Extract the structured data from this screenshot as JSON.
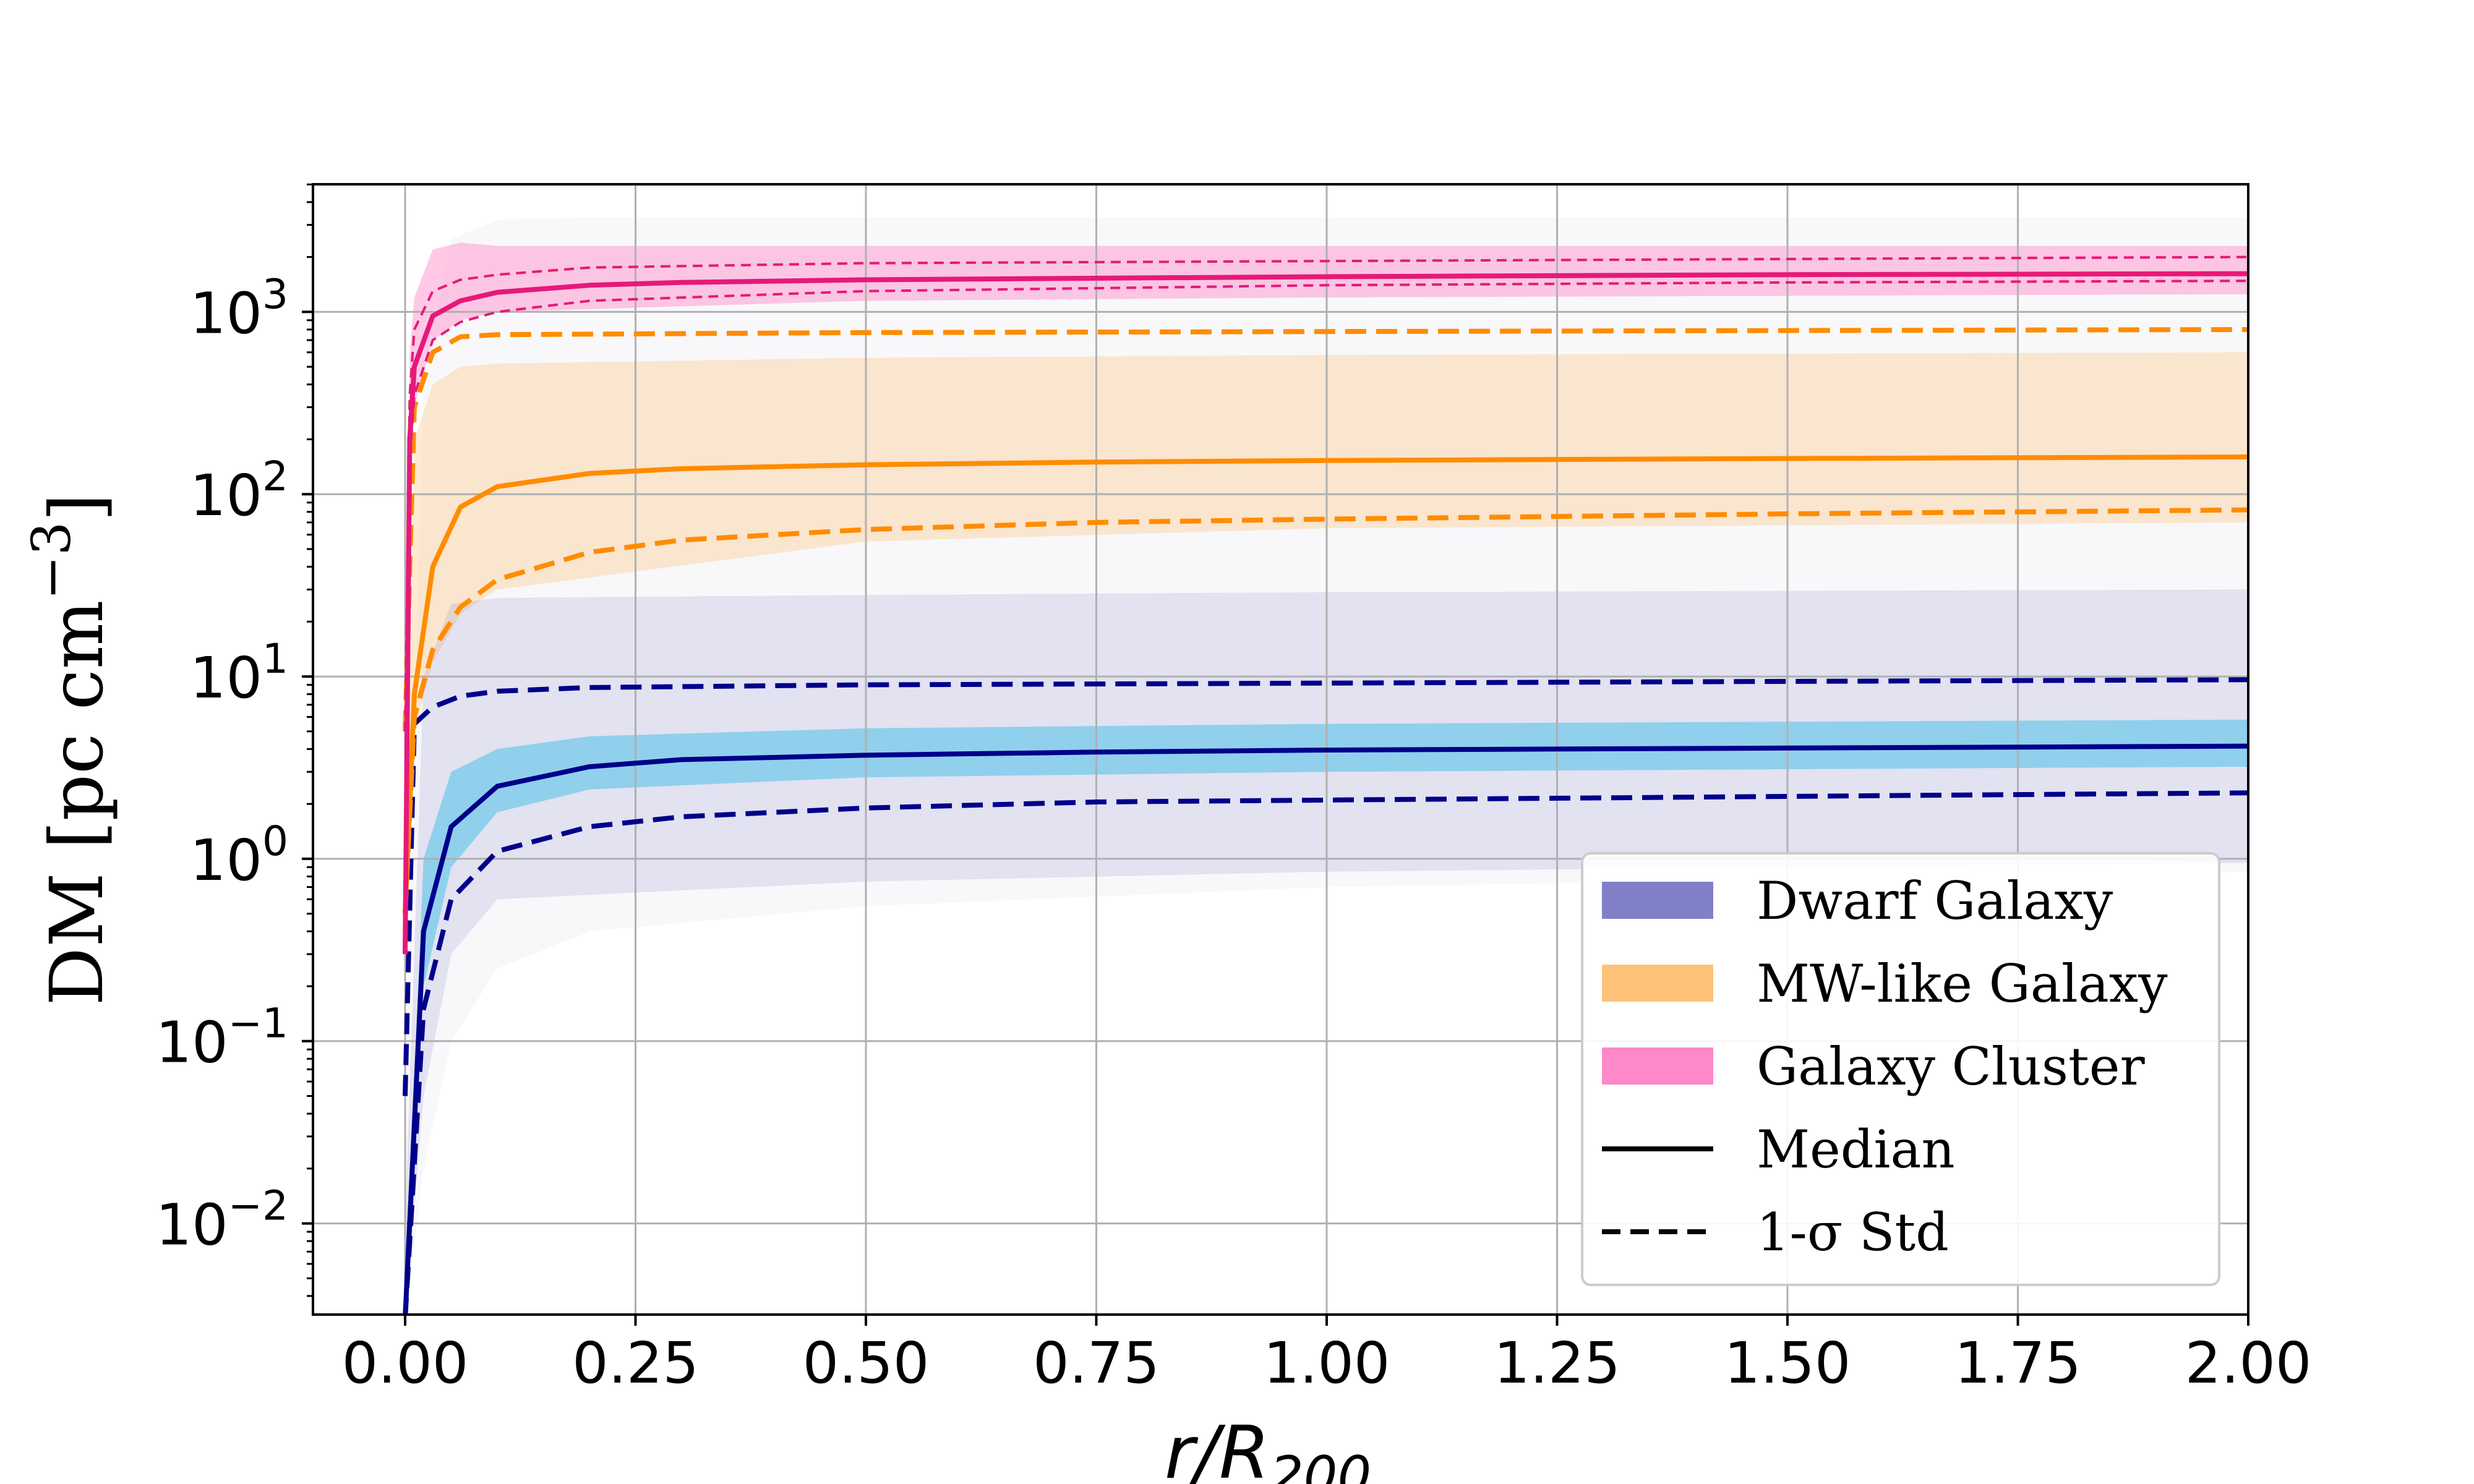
{
  "chart_data": {
    "type": "line",
    "title": "",
    "xlabel": "r/R",
    "xlabel_sub": "200",
    "ylabel": "DM [pc cm",
    "ylabel_sup": "−3",
    "ylabel_close": "]",
    "xlim": [
      -0.1,
      2.0
    ],
    "ylim_log10": [
      -2.5,
      3.7
    ],
    "yscale": "log",
    "grid": true,
    "xticks": [
      0.0,
      0.25,
      0.5,
      0.75,
      1.0,
      1.25,
      1.5,
      1.75,
      2.0
    ],
    "xtick_labels": [
      "0.00",
      "0.25",
      "0.50",
      "0.75",
      "1.00",
      "1.25",
      "1.50",
      "1.75",
      "2.00"
    ],
    "yticks_exp": [
      -2,
      -1,
      0,
      1,
      2,
      3
    ],
    "ytick_base": "10",
    "ytick_exp_labels": [
      "−2",
      "−1",
      "0",
      "1",
      "2",
      "3"
    ],
    "legend_position": "lower-right",
    "legend": [
      {
        "label": "Dwarf Galaxy",
        "kind": "patch",
        "color": "#8080c8"
      },
      {
        "label": "MW-like Galaxy",
        "kind": "patch",
        "color": "#ffc27a"
      },
      {
        "label": "Galaxy Cluster",
        "kind": "patch",
        "color": "#ff88c8"
      },
      {
        "label": "Median",
        "kind": "solid",
        "color": "#000000"
      },
      {
        "label": "1-σ Std",
        "kind": "dashed",
        "color": "#000000"
      }
    ],
    "series": [
      {
        "name": "Dwarf Galaxy median",
        "color": "#00008b",
        "style": "solid",
        "x": [
          0.0,
          0.02,
          0.05,
          0.1,
          0.2,
          0.3,
          0.5,
          0.75,
          1.0,
          1.5,
          2.0
        ],
        "y": [
          0.003,
          0.4,
          1.5,
          2.5,
          3.2,
          3.5,
          3.7,
          3.85,
          3.95,
          4.05,
          4.15
        ]
      },
      {
        "name": "Dwarf Galaxy upper",
        "color": "#00008b",
        "style": "dashed",
        "x": [
          0.0,
          0.01,
          0.03,
          0.06,
          0.1,
          0.2,
          0.5,
          1.0,
          1.5,
          2.0
        ],
        "y": [
          0.05,
          5.5,
          6.8,
          7.8,
          8.3,
          8.7,
          9.0,
          9.2,
          9.4,
          9.6
        ]
      },
      {
        "name": "Dwarf Galaxy lower",
        "color": "#00008b",
        "style": "dashed",
        "x": [
          0.0,
          0.02,
          0.05,
          0.1,
          0.2,
          0.3,
          0.5,
          0.75,
          1.0,
          1.5,
          2.0
        ],
        "y": [
          0.003,
          0.15,
          0.6,
          1.1,
          1.5,
          1.7,
          1.9,
          2.05,
          2.1,
          2.2,
          2.3
        ]
      },
      {
        "name": "MW-like Galaxy median",
        "color": "#ff8c00",
        "style": "solid",
        "x": [
          0.0,
          0.01,
          0.03,
          0.06,
          0.1,
          0.2,
          0.3,
          0.5,
          0.75,
          1.0,
          1.5,
          2.0
        ],
        "y": [
          0.5,
          8,
          40,
          85,
          110,
          130,
          138,
          145,
          150,
          153,
          157,
          160
        ]
      },
      {
        "name": "MW-like Galaxy upper",
        "color": "#ff8c00",
        "style": "dashed",
        "x": [
          0.0,
          0.01,
          0.03,
          0.06,
          0.1,
          0.5,
          1.0,
          1.5,
          2.0
        ],
        "y": [
          5,
          300,
          600,
          730,
          750,
          770,
          780,
          790,
          800
        ]
      },
      {
        "name": "MW-like Galaxy lower",
        "color": "#ff8c00",
        "style": "dashed",
        "x": [
          0.0,
          0.01,
          0.03,
          0.06,
          0.1,
          0.2,
          0.3,
          0.5,
          0.75,
          1.0,
          1.5,
          2.0
        ],
        "y": [
          0.5,
          6,
          14,
          24,
          34,
          48,
          56,
          64,
          70,
          73,
          78,
          82
        ]
      },
      {
        "name": "Galaxy Cluster median",
        "color": "#e6197a",
        "style": "solid",
        "x": [
          0.0,
          0.005,
          0.01,
          0.03,
          0.06,
          0.1,
          0.2,
          0.3,
          0.5,
          1.0,
          1.5,
          2.0
        ],
        "y": [
          0.3,
          200,
          500,
          950,
          1150,
          1280,
          1400,
          1450,
          1500,
          1560,
          1600,
          1620
        ]
      },
      {
        "name": "Galaxy Cluster upper",
        "color": "#e6197a",
        "style": "thin-dashed",
        "x": [
          0.0,
          0.005,
          0.01,
          0.03,
          0.06,
          0.1,
          0.2,
          0.5,
          1.0,
          1.5,
          2.0
        ],
        "y": [
          5,
          350,
          800,
          1300,
          1500,
          1600,
          1750,
          1850,
          1900,
          1950,
          2000
        ]
      },
      {
        "name": "Galaxy Cluster lower",
        "color": "#e6197a",
        "style": "thin-dashed",
        "x": [
          0.0,
          0.005,
          0.01,
          0.03,
          0.06,
          0.1,
          0.2,
          0.5,
          1.0,
          1.5,
          2.0
        ],
        "y": [
          0.3,
          150,
          350,
          700,
          880,
          1000,
          1150,
          1300,
          1400,
          1450,
          1480
        ]
      }
    ],
    "bands": [
      {
        "name": "Dwarf Galaxy core band",
        "color": "#87ceeb",
        "opacity": 0.9,
        "x": [
          0.0,
          0.02,
          0.05,
          0.1,
          0.2,
          0.5,
          1.0,
          2.0
        ],
        "low": [
          0.003,
          0.2,
          0.9,
          1.8,
          2.4,
          2.8,
          3.0,
          3.2
        ],
        "high": [
          0.004,
          1.0,
          3.0,
          4.0,
          4.7,
          5.2,
          5.5,
          5.8
        ]
      },
      {
        "name": "Dwarf Galaxy spread",
        "color": "#8080c8",
        "opacity": 0.18,
        "x": [
          0.0,
          0.02,
          0.05,
          0.1,
          0.5,
          1.0,
          2.0
        ],
        "low": [
          0.003,
          0.05,
          0.3,
          0.6,
          0.75,
          0.85,
          0.95
        ],
        "high": [
          0.01,
          10,
          25,
          27,
          28,
          29,
          30
        ]
      },
      {
        "name": "MW-like Galaxy spread",
        "color": "#ffc27a",
        "opacity": 0.35,
        "x": [
          0.0,
          0.01,
          0.03,
          0.06,
          0.1,
          0.5,
          1.0,
          2.0
        ],
        "low": [
          0.5,
          5,
          12,
          22,
          30,
          55,
          65,
          70
        ],
        "high": [
          1,
          200,
          400,
          500,
          520,
          560,
          580,
          600
        ]
      },
      {
        "name": "Galaxy Cluster spread",
        "color": "#ff88c8",
        "opacity": 0.45,
        "x": [
          0.0,
          0.005,
          0.01,
          0.03,
          0.06,
          0.1,
          0.5,
          1.0,
          2.0
        ],
        "low": [
          0.3,
          100,
          300,
          700,
          900,
          1000,
          1150,
          1200,
          1250
        ],
        "high": [
          5,
          600,
          1200,
          2200,
          2400,
          2300,
          2300,
          2300,
          2300
        ]
      },
      {
        "name": "Background individual profiles",
        "color": "#d8d8e6",
        "opacity": 0.18,
        "x": [
          0.0,
          0.02,
          0.05,
          0.1,
          0.2,
          0.5,
          1.0,
          2.0
        ],
        "low": [
          0.003,
          0.02,
          0.1,
          0.25,
          0.4,
          0.55,
          0.7,
          0.85
        ],
        "high": [
          0.05,
          400,
          2500,
          3200,
          3300,
          3300,
          3300,
          3300
        ]
      }
    ]
  }
}
